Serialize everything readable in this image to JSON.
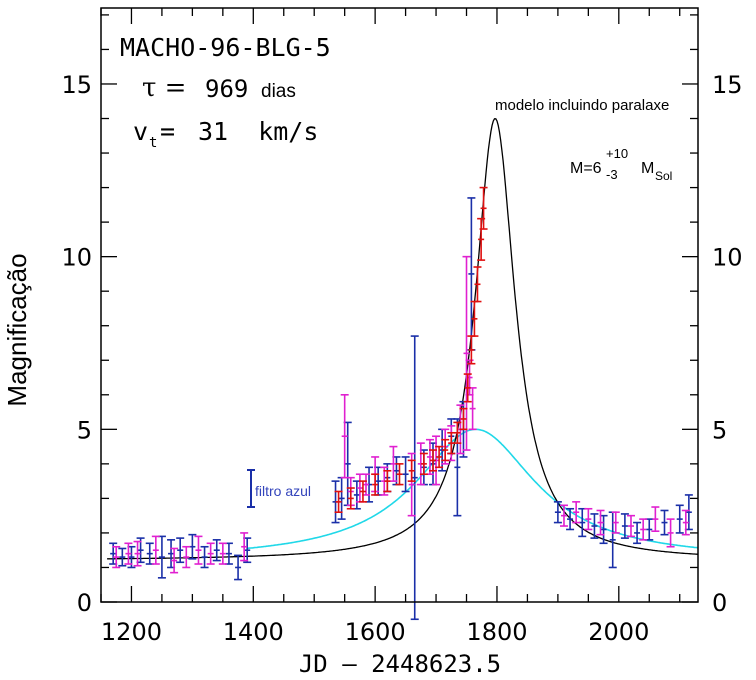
{
  "chart_data": {
    "type": "scatter",
    "title": "MACHO-96-BLG-5",
    "tau_text": "969",
    "tau_unit": "dias",
    "vt_text": "31  km/s",
    "xlabel": "JD – 2448623.5",
    "ylabel": "Magnificação",
    "xlim": [
      1150,
      2130
    ],
    "ylim": [
      0,
      17.2
    ],
    "x_ticks": [
      1200,
      1400,
      1600,
      1800,
      2000
    ],
    "y_ticks": [
      0,
      5,
      10,
      15
    ],
    "grid": false,
    "annotations": {
      "model_label": "modelo incluindo paralaxe",
      "mass_label": {
        "prefix": "M=6",
        "sup": "+10",
        "sub": "-3",
        "unit": "M",
        "unit_sub": "Sol"
      },
      "blue_filter_label": "filtro azul"
    },
    "colors": {
      "blue": "#1a2fa8",
      "magenta": "#e020d0",
      "red": "#e01010",
      "cyan": "#20d8e8",
      "black": "#000000",
      "filter_label": "#3344bb"
    },
    "model_parallax": {
      "t0": 1797,
      "peak": 14.0,
      "baseline": 1.2,
      "half_width": 40
    },
    "model_standard": {
      "t0": 1765,
      "peak": 5.0,
      "baseline": 1.2,
      "half_width": 120
    },
    "series": [
      {
        "name": "azul",
        "color": "blue",
        "points": [
          [
            1170,
            1.4,
            0.3
          ],
          [
            1185,
            1.3,
            0.25
          ],
          [
            1200,
            1.3,
            0.3
          ],
          [
            1215,
            1.5,
            0.35
          ],
          [
            1230,
            1.4,
            0.3
          ],
          [
            1250,
            1.3,
            0.6
          ],
          [
            1265,
            1.4,
            0.4
          ],
          [
            1280,
            1.5,
            0.35
          ],
          [
            1300,
            1.6,
            0.35
          ],
          [
            1320,
            1.3,
            0.3
          ],
          [
            1340,
            1.5,
            0.3
          ],
          [
            1360,
            1.4,
            0.3
          ],
          [
            1375,
            1.0,
            0.35
          ],
          [
            1390,
            1.5,
            0.35
          ],
          [
            1535,
            2.9,
            0.6
          ],
          [
            1545,
            3.0,
            0.6
          ],
          [
            1555,
            4.0,
            1.2
          ],
          [
            1570,
            3.1,
            0.4
          ],
          [
            1590,
            3.4,
            0.5
          ],
          [
            1605,
            3.5,
            0.4
          ],
          [
            1620,
            3.6,
            0.4
          ],
          [
            1635,
            3.8,
            0.4
          ],
          [
            1650,
            3.7,
            0.5
          ],
          [
            1665,
            3.6,
            4.1
          ],
          [
            1680,
            3.9,
            0.5
          ],
          [
            1695,
            4.0,
            0.6
          ],
          [
            1710,
            4.4,
            0.6
          ],
          [
            1725,
            4.8,
            0.5
          ],
          [
            1735,
            3.9,
            1.4
          ],
          [
            1745,
            5.0,
            0.8
          ],
          [
            1758,
            9.5,
            2.2
          ],
          [
            1900,
            2.6,
            0.3
          ],
          [
            1920,
            2.4,
            0.3
          ],
          [
            1940,
            2.3,
            0.4
          ],
          [
            1960,
            2.2,
            0.35
          ],
          [
            1975,
            2.1,
            0.4
          ],
          [
            1990,
            1.8,
            0.8
          ],
          [
            2010,
            2.2,
            0.35
          ],
          [
            2030,
            2.0,
            0.3
          ],
          [
            2050,
            2.1,
            0.3
          ],
          [
            2075,
            2.3,
            0.35
          ],
          [
            2100,
            2.4,
            0.4
          ],
          [
            2115,
            2.6,
            0.5
          ]
        ]
      },
      {
        "name": "magenta",
        "color": "magenta",
        "points": [
          [
            1175,
            1.3,
            0.3
          ],
          [
            1195,
            1.4,
            0.3
          ],
          [
            1210,
            1.4,
            0.35
          ],
          [
            1240,
            1.5,
            0.4
          ],
          [
            1270,
            1.2,
            0.35
          ],
          [
            1290,
            1.3,
            0.3
          ],
          [
            1310,
            1.5,
            0.4
          ],
          [
            1330,
            1.4,
            0.3
          ],
          [
            1350,
            1.4,
            0.3
          ],
          [
            1385,
            1.6,
            0.4
          ],
          [
            1550,
            4.8,
            1.2
          ],
          [
            1560,
            3.2,
            0.4
          ],
          [
            1575,
            3.3,
            0.4
          ],
          [
            1585,
            3.4,
            0.3
          ],
          [
            1600,
            3.7,
            0.5
          ],
          [
            1615,
            3.5,
            0.4
          ],
          [
            1630,
            4.0,
            0.5
          ],
          [
            1660,
            3.4,
            0.9
          ],
          [
            1675,
            4.0,
            0.6
          ],
          [
            1690,
            4.2,
            0.5
          ],
          [
            1700,
            4.1,
            0.7
          ],
          [
            1715,
            4.5,
            0.5
          ],
          [
            1725,
            4.6,
            0.5
          ],
          [
            1740,
            5.0,
            0.7
          ],
          [
            1750,
            7.2,
            2.8
          ],
          [
            1755,
            6.5,
            0.5
          ],
          [
            1760,
            5.6,
            0.6
          ],
          [
            1910,
            2.5,
            0.3
          ],
          [
            1930,
            2.6,
            0.3
          ],
          [
            1950,
            2.4,
            0.3
          ],
          [
            1970,
            2.3,
            0.35
          ],
          [
            1995,
            2.3,
            0.3
          ],
          [
            2020,
            2.2,
            0.3
          ],
          [
            2040,
            2.1,
            0.3
          ],
          [
            2060,
            2.4,
            0.35
          ],
          [
            2085,
            2.0,
            0.4
          ],
          [
            2110,
            2.3,
            0.35
          ]
        ]
      },
      {
        "name": "vermelho",
        "color": "red",
        "points": [
          [
            1540,
            2.9,
            0.3
          ],
          [
            1560,
            3.0,
            0.3
          ],
          [
            1580,
            3.2,
            0.3
          ],
          [
            1600,
            3.4,
            0.3
          ],
          [
            1620,
            3.5,
            0.3
          ],
          [
            1640,
            3.7,
            0.3
          ],
          [
            1660,
            3.8,
            0.3
          ],
          [
            1680,
            4.0,
            0.3
          ],
          [
            1695,
            4.1,
            0.3
          ],
          [
            1705,
            4.2,
            0.3
          ],
          [
            1715,
            4.4,
            0.3
          ],
          [
            1725,
            4.6,
            0.3
          ],
          [
            1735,
            4.9,
            0.3
          ],
          [
            1745,
            5.3,
            0.3
          ],
          [
            1752,
            6.2,
            0.4
          ],
          [
            1758,
            7.3,
            0.4
          ],
          [
            1763,
            8.2,
            0.5
          ],
          [
            1768,
            9.2,
            0.5
          ],
          [
            1774,
            10.5,
            0.6
          ],
          [
            1778,
            11.4,
            0.6
          ]
        ]
      }
    ]
  }
}
